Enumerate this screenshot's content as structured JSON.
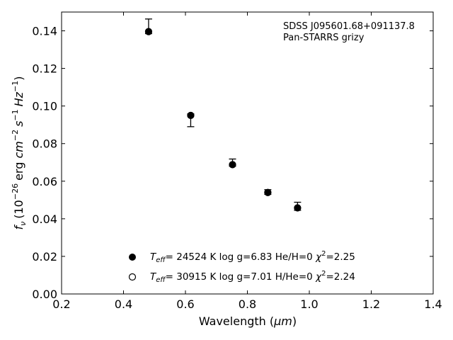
{
  "chart_data": {
    "type": "scatter",
    "xlabel_main": "Wavelength (",
    "xlabel_unit": "μm",
    "xlabel_end": ")",
    "ylabel_fnu": "f",
    "ylabel_nu": "ν",
    "ylabel_open": "(10",
    "ylabel_exp1": "−26",
    "ylabel_erg": "erg ",
    "ylabel_cm": "cm",
    "ylabel_exp2": "−2",
    "ylabel_s": "s",
    "ylabel_exp3": "−1",
    "ylabel_hz": "Hz",
    "ylabel_exp4": "−1",
    "ylabel_close": ")",
    "xlim": [
      0.2,
      1.4
    ],
    "ylim": [
      0.0,
      0.15
    ],
    "xticks": [
      "0.2",
      "0.4",
      "0.6",
      "0.8",
      "1.0",
      "1.2",
      "1.4"
    ],
    "yticks": [
      "0.00",
      "0.02",
      "0.04",
      "0.06",
      "0.08",
      "0.10",
      "0.12",
      "0.14"
    ],
    "grid": false,
    "annotation_lines": [
      "SDSS J095601.68+091137.8",
      "Pan-STARRS grizy"
    ],
    "series": [
      {
        "marker": "filled",
        "x": [
          0.481,
          0.617,
          0.752,
          0.866,
          0.962
        ],
        "y": [
          0.1396,
          0.095,
          0.0688,
          0.054,
          0.0458
        ],
        "y_err_low": [
          0.1385,
          0.089,
          0.068,
          0.053,
          0.0445
        ],
        "y_err_high": [
          0.1463,
          0.0958,
          0.0718,
          0.0555,
          0.0488
        ]
      },
      {
        "marker": "open",
        "x": [
          0.481,
          0.617,
          0.752,
          0.866,
          0.962
        ],
        "y": [
          0.1396,
          0.095,
          0.0688,
          0.054,
          0.0458
        ]
      }
    ],
    "legend": [
      {
        "marker": "filled",
        "t": "T",
        "t_sub": "eff",
        "text": "= 24524 K  log g=6.83  He/H=0  ",
        "chi": "χ",
        "chi_sup": "2",
        "chi_val": "=2.25"
      },
      {
        "marker": "open",
        "t": "T",
        "t_sub": "eff",
        "text": "= 30915 K  log g=7.01  H/He=0  ",
        "chi": "χ",
        "chi_sup": "2",
        "chi_val": "=2.24"
      }
    ],
    "legend_position": "lower-center"
  }
}
